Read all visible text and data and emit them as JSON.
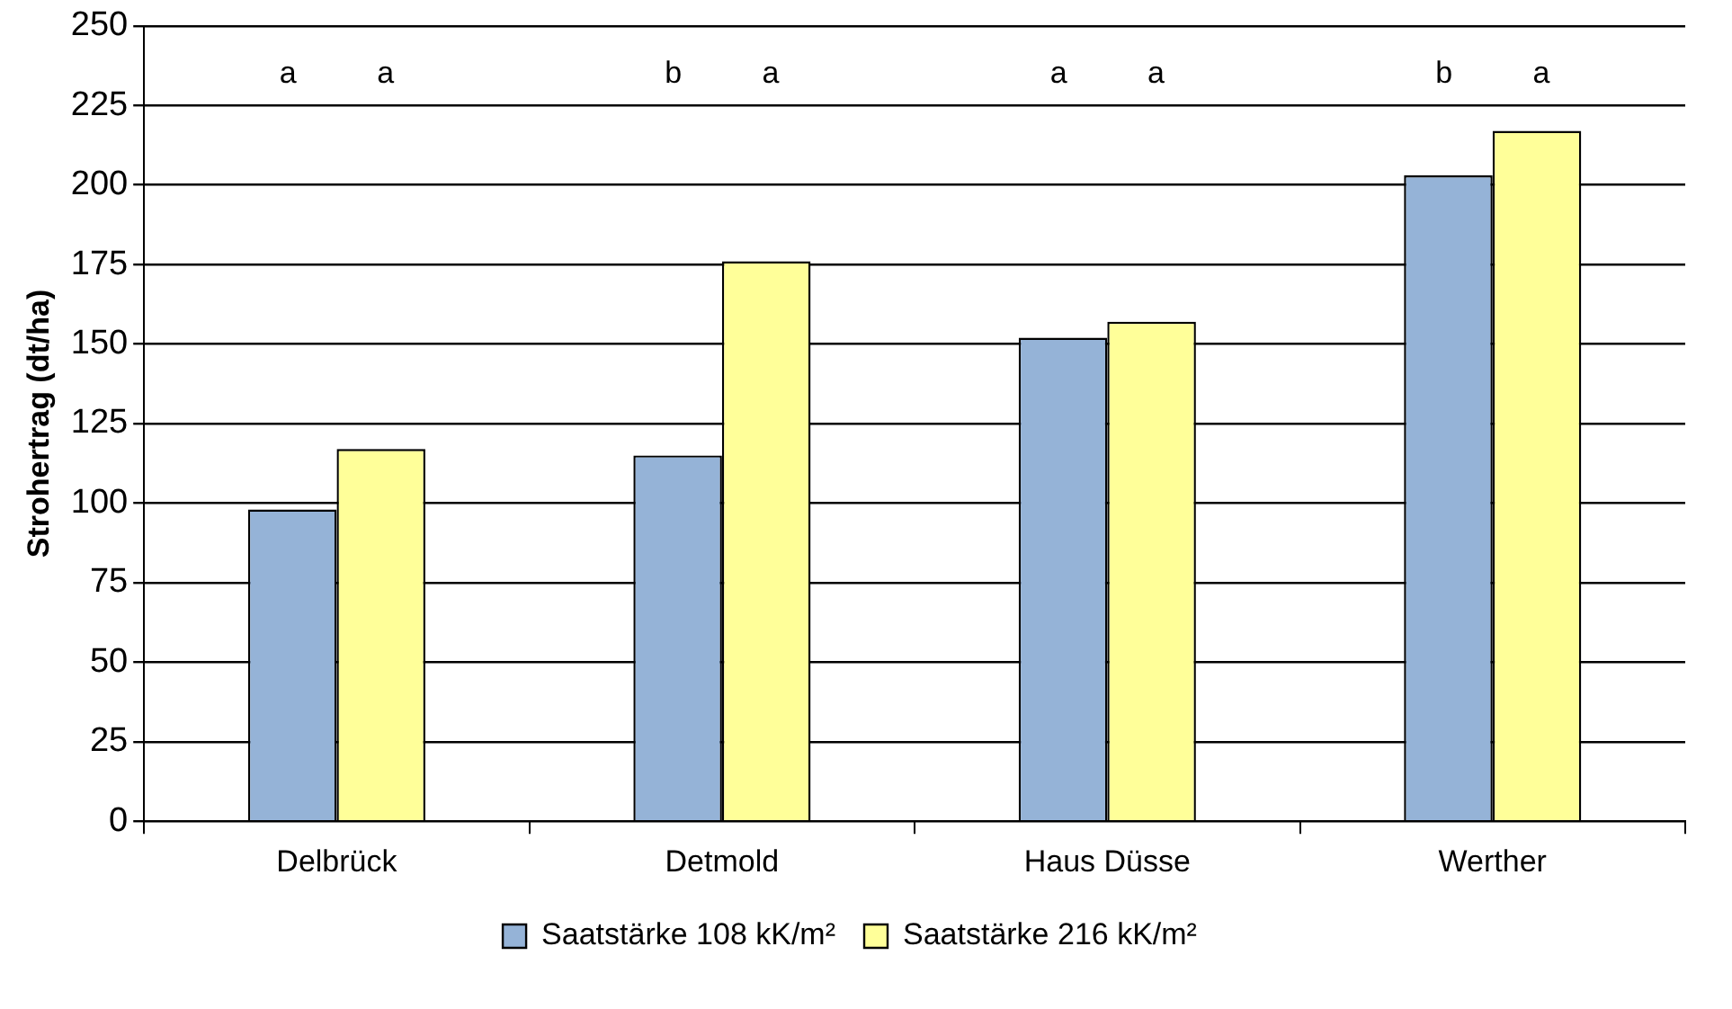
{
  "chart_data": {
    "type": "bar",
    "ylabel": "Strohertrag (dt/ha)",
    "categories": [
      "Delbrück",
      "Detmold",
      "Haus Düsse",
      "Werther"
    ],
    "series": [
      {
        "name": "Saatstärke 108 kK/m²",
        "color": "#95b3d7",
        "values": [
          98,
          115,
          152,
          203
        ]
      },
      {
        "name": "Saatstärke 216 kK/m²",
        "color": "#ffff99",
        "values": [
          117,
          176,
          157,
          217
        ]
      }
    ],
    "ylim": [
      0,
      250
    ],
    "yticks": [
      0,
      25,
      50,
      75,
      100,
      125,
      150,
      175,
      200,
      225,
      250
    ],
    "grid": "y",
    "legend": "bottom",
    "annotations": [
      "a a",
      "b a",
      "a a",
      "b a"
    ]
  }
}
